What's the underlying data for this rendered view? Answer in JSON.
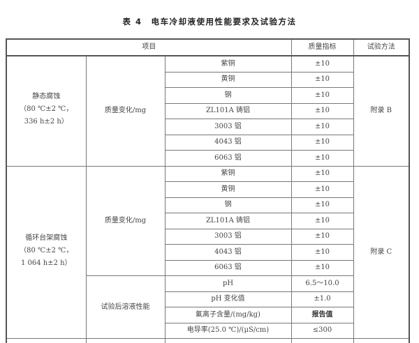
{
  "title": "表 4　电车冷却液使用性能要求及试验方法",
  "headers": {
    "item": "项目",
    "index": "质量指标",
    "method": "试验方法"
  },
  "groups": [
    {
      "name": "静态腐蚀",
      "condition1": "（80 ℃±2 ℃，",
      "condition2": "336 h±2 h）",
      "method": "附录 B",
      "subgroups": [
        {
          "name": "质量变化/mg",
          "rows": [
            {
              "item": "紫铜",
              "value": "±10"
            },
            {
              "item": "黄铜",
              "value": "±10"
            },
            {
              "item": "钢",
              "value": "±10"
            },
            {
              "item": "ZL101A 铸铝",
              "value": "±10"
            },
            {
              "item": "3003 铝",
              "value": "±10"
            },
            {
              "item": "4043 铝",
              "value": "±10"
            },
            {
              "item": "6063 铝",
              "value": "±10"
            }
          ]
        }
      ]
    },
    {
      "name": "循环台架腐蚀",
      "condition1": "（80 ℃±2 ℃，",
      "condition2": "1 064 h±2 h）",
      "method": "附录 C",
      "subgroups": [
        {
          "name": "质量变化/mg",
          "rows": [
            {
              "item": "紫铜",
              "value": "±10"
            },
            {
              "item": "黄铜",
              "value": "±10"
            },
            {
              "item": "钢",
              "value": "±10"
            },
            {
              "item": "ZL101A 铸铝",
              "value": "±10"
            },
            {
              "item": "3003 铝",
              "value": "±10"
            },
            {
              "item": "4043 铝",
              "value": "±10"
            },
            {
              "item": "6063 铝",
              "value": "±10"
            }
          ]
        },
        {
          "name": "试验后溶液性能",
          "rows": [
            {
              "item": "pH",
              "value": "6.5～10.0"
            },
            {
              "item": "pH 变化值",
              "value": "±1.0"
            },
            {
              "item": "氟离子含量/(mg/kg)",
              "value": "报告值"
            },
            {
              "item": "电导率(25.0 ℃)/(μS/cm)",
              "value": "≤300"
            }
          ]
        }
      ]
    }
  ]
}
